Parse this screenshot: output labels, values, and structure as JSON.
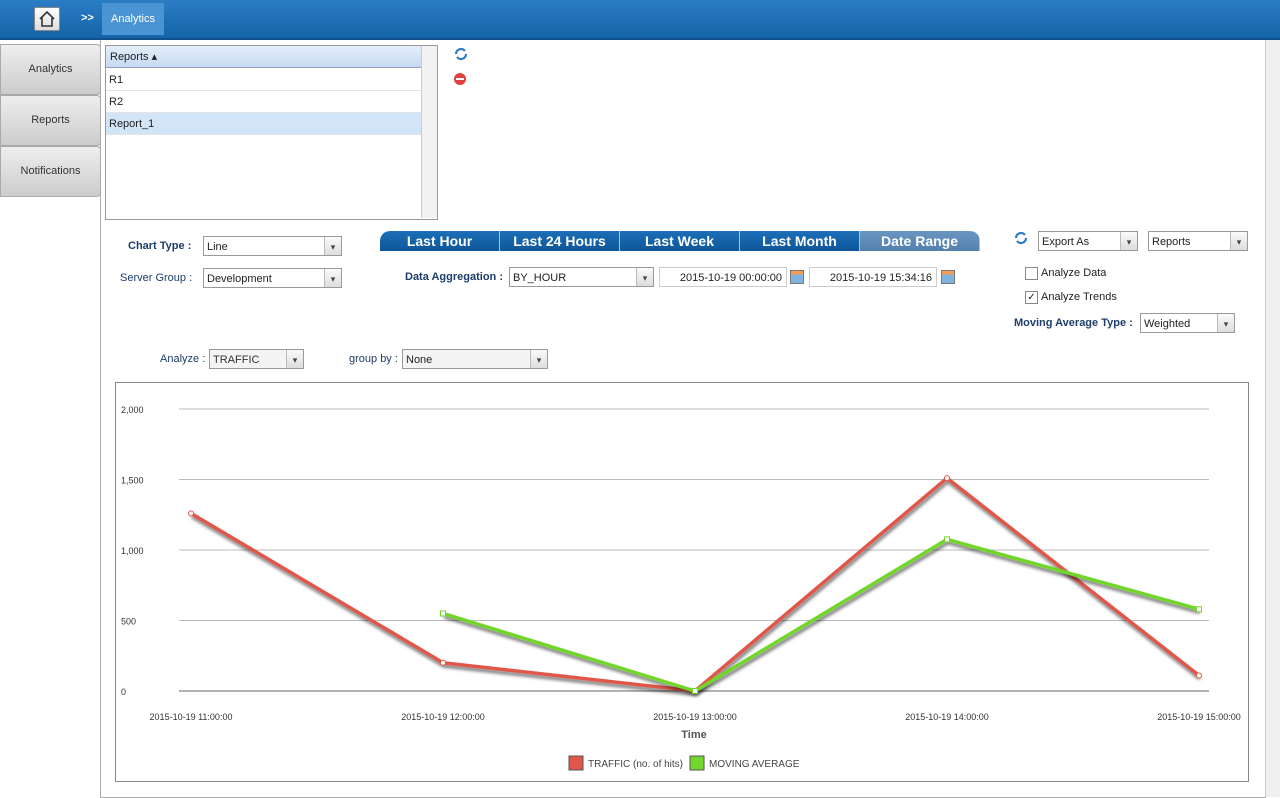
{
  "breadcrumb": {
    "separator": ">>",
    "current": "Analytics"
  },
  "sidebar": {
    "items": [
      "Analytics",
      "Reports",
      "Notifications"
    ]
  },
  "reports_table": {
    "header": "Reports",
    "rows": [
      "R1",
      "R2",
      "Report_1"
    ],
    "selected": 2
  },
  "controls": {
    "chart_type_label": "Chart Type :",
    "chart_type": "Line",
    "server_group_label": "Server Group :",
    "server_group": "Development",
    "tabs": [
      "Last Hour",
      "Last 24 Hours",
      "Last Week",
      "Last Month",
      "Date Range"
    ],
    "active_tab": 4,
    "data_aggregation_label": "Data Aggregation :",
    "data_aggregation": "BY_HOUR",
    "start_date": "2015-10-19 00:00:00",
    "end_date": "2015-10-19 15:34:16",
    "export": "Export As",
    "export_target": "Reports",
    "analyze_data": {
      "label": "Analyze Data",
      "checked": false
    },
    "analyze_trends": {
      "label": "Analyze Trends",
      "checked": true
    },
    "moving_average_label": "Moving Average Type :",
    "moving_average": "Weighted",
    "analyze_label": "Analyze :",
    "analyze": "TRAFFIC",
    "group_by_label": "group by :",
    "group_by": "None"
  },
  "chart_data": {
    "type": "line",
    "x_label": "Time",
    "categories": [
      "2015-10-19 11:00:00",
      "2015-10-19 12:00:00",
      "2015-10-19 13:00:00",
      "2015-10-19 14:00:00",
      "2015-10-19 15:00:00"
    ],
    "series": [
      {
        "name": "TRAFFIC (no. of hits)",
        "color": "#e0574a",
        "values": [
          1260,
          200,
          0,
          1510,
          110
        ]
      },
      {
        "name": "MOVING AVERAGE",
        "color": "#72d62c",
        "values": [
          null,
          550,
          0,
          1075,
          580
        ]
      }
    ],
    "ylim": [
      0,
      2000
    ],
    "yticks": [
      0,
      500,
      {
        "value": 1000,
        "label": "1,000"
      },
      {
        "value": 1500,
        "label": "1,500"
      },
      {
        "value": 2000,
        "label": "2,000"
      }
    ],
    "grid": true
  }
}
